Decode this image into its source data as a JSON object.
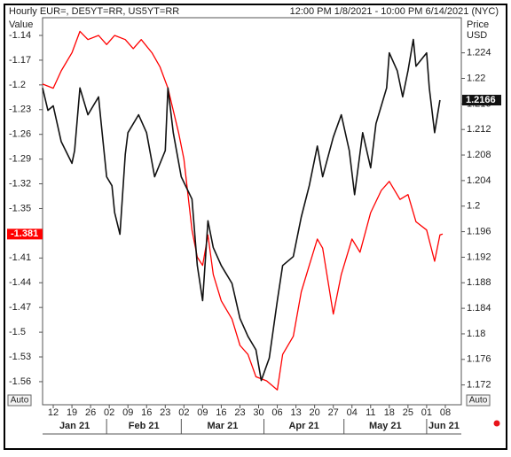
{
  "chart_data": {
    "type": "line",
    "title": "Hourly EUR=, DE5YT=RR, US5YT=RR",
    "subtitle": "12:00 PM 1/8/2021 - 10:00 PM 6/14/2021 (NYC)",
    "ylabel": "Value",
    "y2label": [
      "Price",
      "USD"
    ],
    "xlim": [
      "2021-01-08",
      "2021-06-14"
    ],
    "ylim": [
      -1.588,
      -1.1185
    ],
    "y2lim": [
      1.1689,
      1.2295
    ],
    "yticks": [
      -1.14,
      -1.17,
      -1.2,
      -1.23,
      -1.26,
      -1.29,
      -1.32,
      -1.35,
      -1.41,
      -1.44,
      -1.47,
      -1.5,
      -1.53,
      -1.56
    ],
    "y2ticks": [
      1.224,
      1.22,
      1.216,
      1.212,
      1.208,
      1.204,
      1.2,
      1.196,
      1.192,
      1.188,
      1.184,
      1.18,
      1.176,
      1.172
    ],
    "xticks": [
      {
        "value": "2021-01-12",
        "label": "12"
      },
      {
        "value": "2021-01-19",
        "label": "19"
      },
      {
        "value": "2021-01-26",
        "label": "26"
      },
      {
        "value": "2021-02-02",
        "label": "02"
      },
      {
        "value": "2021-02-09",
        "label": "09"
      },
      {
        "value": "2021-02-16",
        "label": "16"
      },
      {
        "value": "2021-02-23",
        "label": "23"
      },
      {
        "value": "2021-03-02",
        "label": "02"
      },
      {
        "value": "2021-03-09",
        "label": "09"
      },
      {
        "value": "2021-03-16",
        "label": "16"
      },
      {
        "value": "2021-03-23",
        "label": "23"
      },
      {
        "value": "2021-03-30",
        "label": "30"
      },
      {
        "value": "2021-04-06",
        "label": "06"
      },
      {
        "value": "2021-04-13",
        "label": "13"
      },
      {
        "value": "2021-04-20",
        "label": "20"
      },
      {
        "value": "2021-04-27",
        "label": "27"
      },
      {
        "value": "2021-05-04",
        "label": "04"
      },
      {
        "value": "2021-05-11",
        "label": "11"
      },
      {
        "value": "2021-05-18",
        "label": "18"
      },
      {
        "value": "2021-05-25",
        "label": "25"
      },
      {
        "value": "2021-06-01",
        "label": "01"
      },
      {
        "value": "2021-06-08",
        "label": "08"
      }
    ],
    "x_groups": [
      {
        "value": "2021-01-01",
        "label": "Jan 21"
      },
      {
        "value": "2021-02-01",
        "label": "Feb 21"
      },
      {
        "value": "2021-03-01",
        "label": "Mar 21"
      },
      {
        "value": "2021-04-01",
        "label": "Apr 21"
      },
      {
        "value": "2021-05-01",
        "label": "May 21"
      },
      {
        "value": "2021-06-01",
        "label": "Jun 21"
      }
    ],
    "series": [
      {
        "color": "#ff0000",
        "axis": "y",
        "last_value": -1.381,
        "x": [
          "2021-01-08",
          "2021-01-12",
          "2021-01-15",
          "2021-01-19",
          "2021-01-22",
          "2021-01-25",
          "2021-01-29",
          "2021-02-01",
          "2021-02-04",
          "2021-02-08",
          "2021-02-11",
          "2021-02-14",
          "2021-02-18",
          "2021-02-21",
          "2021-02-24",
          "2021-02-28",
          "2021-03-02",
          "2021-03-05",
          "2021-03-07",
          "2021-03-09",
          "2021-03-11",
          "2021-03-13",
          "2021-03-16",
          "2021-03-20",
          "2021-03-23",
          "2021-03-26",
          "2021-03-29",
          "2021-04-02",
          "2021-04-06",
          "2021-04-08",
          "2021-04-12",
          "2021-04-15",
          "2021-04-18",
          "2021-04-21",
          "2021-04-23",
          "2021-04-27",
          "2021-04-30",
          "2021-05-04",
          "2021-05-07",
          "2021-05-11",
          "2021-05-15",
          "2021-05-18",
          "2021-05-22",
          "2021-05-25",
          "2021-05-28",
          "2021-06-01",
          "2021-06-04",
          "2021-06-06",
          "2021-06-07"
        ],
        "values": [
          -1.199,
          -1.204,
          -1.183,
          -1.161,
          -1.135,
          -1.145,
          -1.14,
          -1.151,
          -1.14,
          -1.145,
          -1.156,
          -1.145,
          -1.161,
          -1.178,
          -1.204,
          -1.258,
          -1.29,
          -1.376,
          -1.409,
          -1.419,
          -1.382,
          -1.43,
          -1.462,
          -1.484,
          -1.516,
          -1.527,
          -1.554,
          -1.559,
          -1.57,
          -1.527,
          -1.505,
          -1.451,
          -1.419,
          -1.387,
          -1.398,
          -1.478,
          -1.43,
          -1.387,
          -1.403,
          -1.355,
          -1.328,
          -1.317,
          -1.339,
          -1.333,
          -1.366,
          -1.376,
          -1.414,
          -1.382,
          -1.381
        ]
      },
      {
        "color": "#111111",
        "axis": "y2",
        "last_value": 1.2166,
        "x": [
          "2021-01-08",
          "2021-01-10",
          "2021-01-12",
          "2021-01-15",
          "2021-01-19",
          "2021-01-20",
          "2021-01-22",
          "2021-01-25",
          "2021-01-29",
          "2021-01-30",
          "2021-02-01",
          "2021-02-03",
          "2021-02-04",
          "2021-02-06",
          "2021-02-08",
          "2021-02-09",
          "2021-02-13",
          "2021-02-16",
          "2021-02-19",
          "2021-02-23",
          "2021-02-24",
          "2021-02-26",
          "2021-03-01",
          "2021-03-05",
          "2021-03-07",
          "2021-03-09",
          "2021-03-11",
          "2021-03-13",
          "2021-03-16",
          "2021-03-20",
          "2021-03-23",
          "2021-03-26",
          "2021-03-29",
          "2021-03-31",
          "2021-04-03",
          "2021-04-06",
          "2021-04-08",
          "2021-04-12",
          "2021-04-15",
          "2021-04-18",
          "2021-04-21",
          "2021-04-23",
          "2021-04-27",
          "2021-04-30",
          "2021-05-03",
          "2021-05-05",
          "2021-05-08",
          "2021-05-11",
          "2021-05-13",
          "2021-05-17",
          "2021-05-18",
          "2021-05-21",
          "2021-05-23",
          "2021-05-25",
          "2021-05-27",
          "2021-05-28",
          "2021-06-01",
          "2021-06-02",
          "2021-06-04",
          "2021-06-06"
        ],
        "values": [
          1.2185,
          1.215,
          1.2157,
          1.2101,
          1.2067,
          1.2087,
          1.2185,
          1.2143,
          1.2171,
          1.2129,
          1.2046,
          1.2032,
          1.199,
          1.1956,
          1.2081,
          1.2115,
          1.2143,
          1.2115,
          1.2046,
          1.2087,
          1.2185,
          1.2115,
          1.2046,
          1.2011,
          1.1907,
          1.1852,
          1.1977,
          1.1935,
          1.1907,
          1.1879,
          1.1824,
          1.1796,
          1.1775,
          1.1727,
          1.1762,
          1.1852,
          1.1907,
          1.1921,
          1.1983,
          1.2032,
          1.2094,
          1.2046,
          1.2108,
          1.2143,
          1.2087,
          1.2018,
          1.2115,
          1.206,
          1.2129,
          1.2185,
          1.224,
          1.2212,
          1.2171,
          1.2212,
          1.2261,
          1.2219,
          1.224,
          1.2185,
          1.2115,
          1.2166
        ]
      }
    ]
  },
  "controls": {
    "auto_left": "Auto",
    "auto_right": "Auto"
  }
}
